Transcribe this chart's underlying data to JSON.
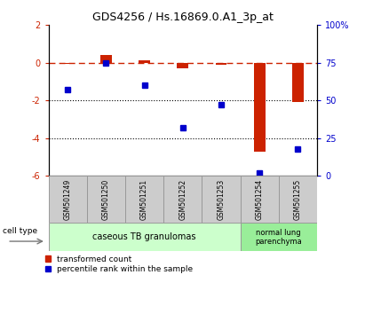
{
  "title": "GDS4256 / Hs.16869.0.A1_3p_at",
  "samples": [
    "GSM501249",
    "GSM501250",
    "GSM501251",
    "GSM501252",
    "GSM501253",
    "GSM501254",
    "GSM501255"
  ],
  "transformed_count": [
    -0.05,
    0.4,
    0.15,
    -0.3,
    -0.1,
    -4.7,
    -2.1
  ],
  "percentile_rank": [
    57,
    75,
    60,
    32,
    47,
    2,
    18
  ],
  "ylim_left": [
    -6,
    2
  ],
  "ylim_right": [
    0,
    100
  ],
  "yticks_left": [
    2,
    0,
    -2,
    -4,
    -6
  ],
  "yticks_right": [
    100,
    75,
    50,
    25,
    0
  ],
  "ytick_labels_right": [
    "100%",
    "75",
    "50",
    "25",
    "0"
  ],
  "dotted_lines": [
    -2,
    -4
  ],
  "bar_color": "#cc2200",
  "point_color": "#0000cc",
  "dashed_color": "#cc2200",
  "group1_label": "caseous TB granulomas",
  "group2_label": "normal lung\nparenchyma",
  "group1_bg": "#ccffcc",
  "group2_bg": "#99ee99",
  "sample_box_bg": "#cccccc",
  "legend_labels": [
    "transformed count",
    "percentile rank within the sample"
  ],
  "cell_type_label": "cell type"
}
